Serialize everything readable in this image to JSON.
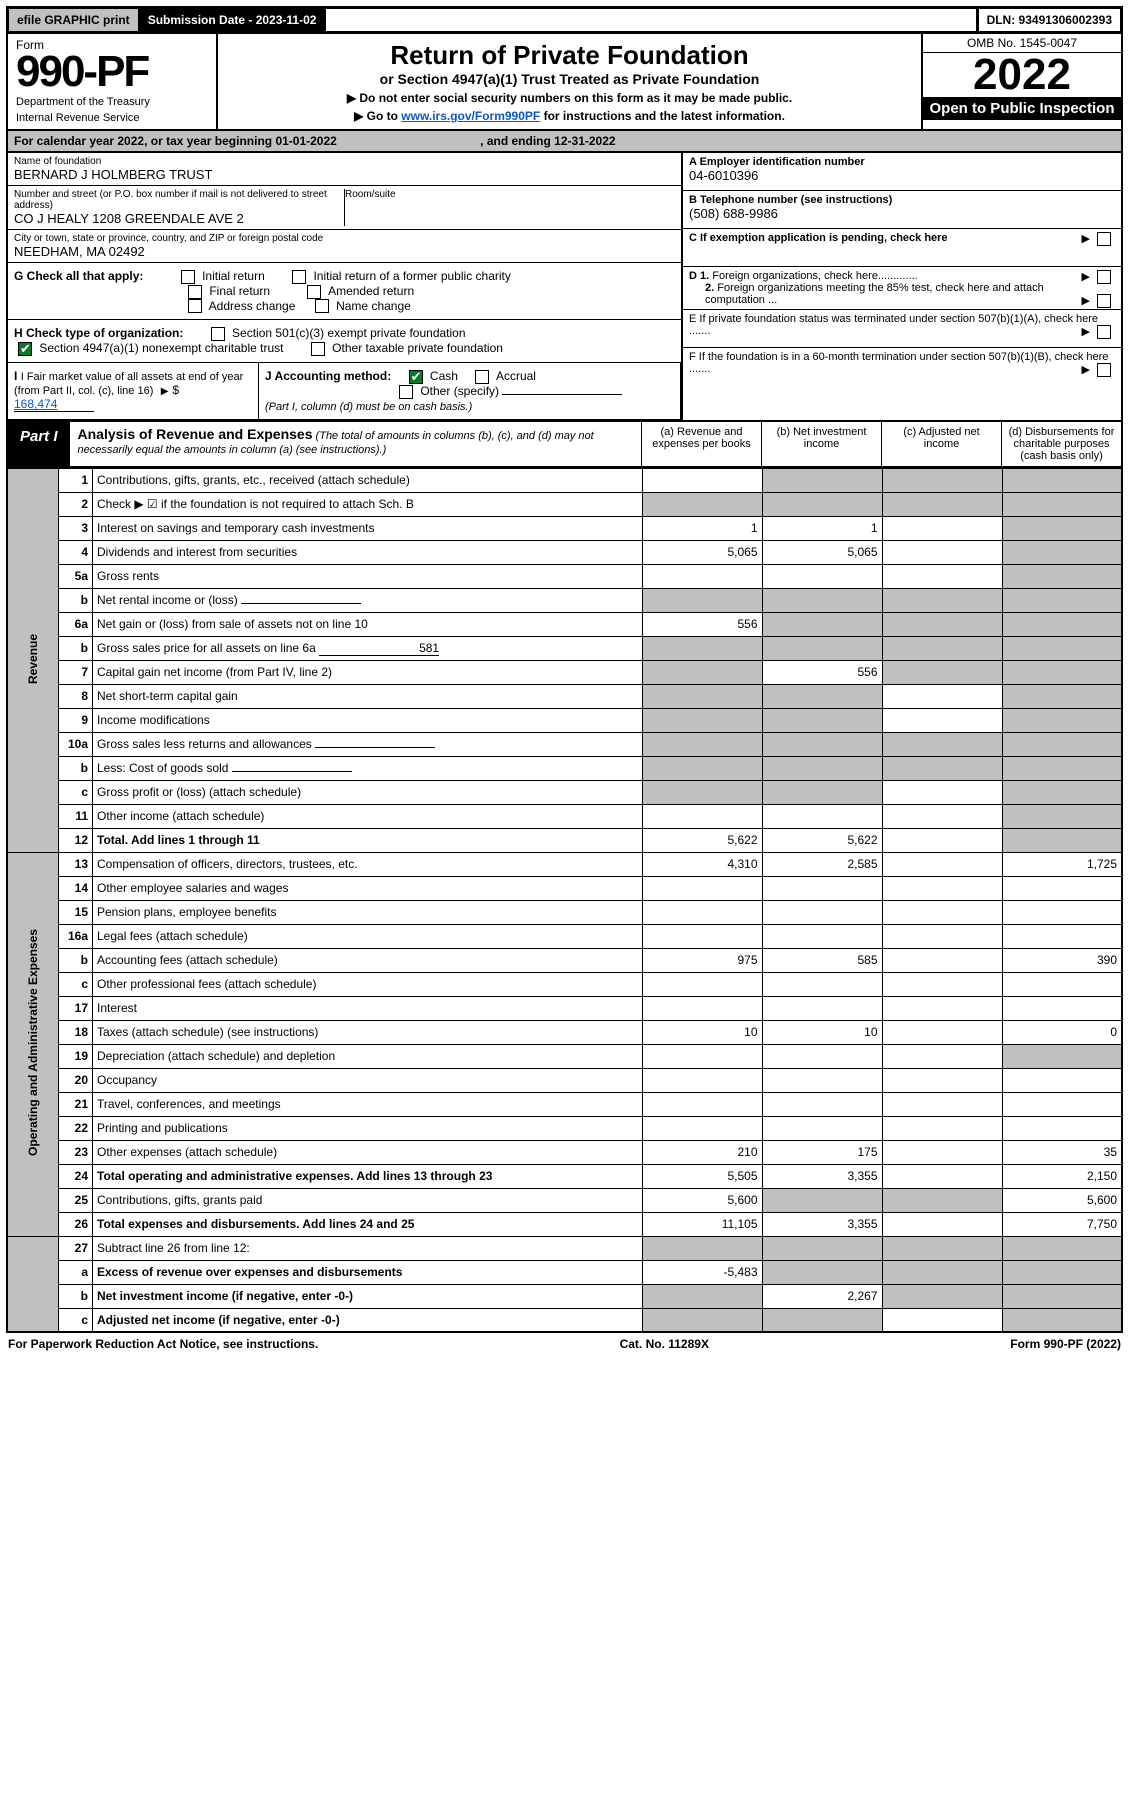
{
  "efile": {
    "print": "efile GRAPHIC print",
    "sub_label": "Submission Date - 2023-11-02",
    "dln": "DLN: 93491306002393"
  },
  "hdr": {
    "form": "Form",
    "num": "990-PF",
    "dept": "Department of the Treasury",
    "irs": "Internal Revenue Service",
    "title": "Return of Private Foundation",
    "sub": "or Section 4947(a)(1) Trust Treated as Private Foundation",
    "note1": "▶ Do not enter social security numbers on this form as it may be made public.",
    "note2_a": "▶ Go to ",
    "note2_link": "www.irs.gov/Form990PF",
    "note2_b": " for instructions and the latest information.",
    "omb": "OMB No. 1545-0047",
    "year": "2022",
    "inspect": "Open to Public Inspection"
  },
  "cal": {
    "text_a": "For calendar year 2022, or tax year beginning 01-01-2022",
    "text_b": ", and ending 12-31-2022"
  },
  "info": {
    "name_label": "Name of foundation",
    "name": "BERNARD J HOLMBERG TRUST",
    "addr_label": "Number and street (or P.O. box number if mail is not delivered to street address)",
    "addr": "CO J HEALY 1208 GREENDALE AVE 2",
    "room_label": "Room/suite",
    "city_label": "City or town, state or province, country, and ZIP or foreign postal code",
    "city": "NEEDHAM, MA  02492",
    "a_label": "A Employer identification number",
    "a_val": "04-6010396",
    "b_label": "B Telephone number (see instructions)",
    "b_val": "(508) 688-9986",
    "c_label": "C If exemption application is pending, check here",
    "d1": "D 1. Foreign organizations, check here.............",
    "d2": "2. Foreign organizations meeting the 85% test, check here and attach computation ...",
    "e": "E  If private foundation status was terminated under section 507(b)(1)(A), check here .......",
    "f": "F  If the foundation is in a 60-month termination under section 507(b)(1)(B), check here ......."
  },
  "g": {
    "label": "G Check all that apply:",
    "o1": "Initial return",
    "o2": "Initial return of a former public charity",
    "o3": "Final return",
    "o4": "Amended return",
    "o5": "Address change",
    "o6": "Name change"
  },
  "h": {
    "label": "H Check type of organization:",
    "o1": "Section 501(c)(3) exempt private foundation",
    "o2": "Section 4947(a)(1) nonexempt charitable trust",
    "o3": "Other taxable private foundation"
  },
  "i": {
    "label": "I Fair market value of all assets at end of year (from Part II, col. (c), line 16)",
    "val": "168,474"
  },
  "j": {
    "label": "J Accounting method:",
    "o1": "Cash",
    "o2": "Accrual",
    "o3": "Other (specify)",
    "note": "(Part I, column (d) must be on cash basis.)"
  },
  "part1": {
    "tag": "Part I",
    "title": "Analysis of Revenue and Expenses",
    "title_note": " (The total of amounts in columns (b), (c), and (d) may not necessarily equal the amounts in column (a) (see instructions).)",
    "cols": {
      "a": "(a)   Revenue and expenses per books",
      "b": "(b)   Net investment income",
      "c": "(c)   Adjusted net income",
      "d": "(d)   Disbursements for charitable purposes (cash basis only)"
    }
  },
  "sections": {
    "rev": "Revenue",
    "op": "Operating and Administrative Expenses"
  },
  "rows": [
    {
      "n": "1",
      "d": "Contributions, gifts, grants, etc., received (attach schedule)",
      "a": "",
      "b_sh": true,
      "c_sh": true,
      "dd_sh": true
    },
    {
      "n": "2",
      "d": "Check ▶ ☑ if the foundation is not required to attach Sch. B",
      "a_sh": true,
      "b_sh": true,
      "c_sh": true,
      "dd_sh": true,
      "bold_not": true
    },
    {
      "n": "3",
      "d": "Interest on savings and temporary cash investments",
      "a": "1",
      "b": "1",
      "dd_sh": true
    },
    {
      "n": "4",
      "d": "Dividends and interest from securities",
      "a": "5,065",
      "b": "5,065",
      "dd_sh": true
    },
    {
      "n": "5a",
      "d": "Gross rents",
      "dd_sh": true
    },
    {
      "n": "b",
      "d": "Net rental income or (loss)",
      "inline_blank": true,
      "a_sh": true,
      "b_sh": true,
      "c_sh": true,
      "dd_sh": true
    },
    {
      "n": "6a",
      "d": "Net gain or (loss) from sale of assets not on line 10",
      "a": "556",
      "b_sh": true,
      "c_sh": true,
      "dd_sh": true
    },
    {
      "n": "b",
      "d": "Gross sales price for all assets on line 6a",
      "inline_val": "581",
      "a_sh": true,
      "b_sh": true,
      "c_sh": true,
      "dd_sh": true
    },
    {
      "n": "7",
      "d": "Capital gain net income (from Part IV, line 2)",
      "a_sh": true,
      "b": "556",
      "c_sh": true,
      "dd_sh": true
    },
    {
      "n": "8",
      "d": "Net short-term capital gain",
      "a_sh": true,
      "b_sh": true,
      "dd_sh": true
    },
    {
      "n": "9",
      "d": "Income modifications",
      "a_sh": true,
      "b_sh": true,
      "dd_sh": true
    },
    {
      "n": "10a",
      "d": "Gross sales less returns and allowances",
      "inline_blank": true,
      "a_sh": true,
      "b_sh": true,
      "c_sh": true,
      "dd_sh": true
    },
    {
      "n": "b",
      "d": "Less: Cost of goods sold",
      "inline_blank": true,
      "a_sh": true,
      "b_sh": true,
      "c_sh": true,
      "dd_sh": true
    },
    {
      "n": "c",
      "d": "Gross profit or (loss) (attach schedule)",
      "a_sh": true,
      "b_sh": true,
      "dd_sh": true
    },
    {
      "n": "11",
      "d": "Other income (attach schedule)",
      "dd_sh": true
    },
    {
      "n": "12",
      "d": "Total. Add lines 1 through 11",
      "bold": true,
      "a": "5,622",
      "b": "5,622",
      "dd_sh": true
    }
  ],
  "rows_op": [
    {
      "n": "13",
      "d": "Compensation of officers, directors, trustees, etc.",
      "a": "4,310",
      "b": "2,585",
      "dd": "1,725"
    },
    {
      "n": "14",
      "d": "Other employee salaries and wages"
    },
    {
      "n": "15",
      "d": "Pension plans, employee benefits"
    },
    {
      "n": "16a",
      "d": "Legal fees (attach schedule)"
    },
    {
      "n": "b",
      "d": "Accounting fees (attach schedule)",
      "a": "975",
      "b": "585",
      "dd": "390"
    },
    {
      "n": "c",
      "d": "Other professional fees (attach schedule)"
    },
    {
      "n": "17",
      "d": "Interest"
    },
    {
      "n": "18",
      "d": "Taxes (attach schedule) (see instructions)",
      "a": "10",
      "b": "10",
      "dd": "0"
    },
    {
      "n": "19",
      "d": "Depreciation (attach schedule) and depletion",
      "dd_sh": true
    },
    {
      "n": "20",
      "d": "Occupancy"
    },
    {
      "n": "21",
      "d": "Travel, conferences, and meetings"
    },
    {
      "n": "22",
      "d": "Printing and publications"
    },
    {
      "n": "23",
      "d": "Other expenses (attach schedule)",
      "a": "210",
      "b": "175",
      "dd": "35"
    },
    {
      "n": "24",
      "d": "Total operating and administrative expenses. Add lines 13 through 23",
      "bold": true,
      "a": "5,505",
      "b": "3,355",
      "dd": "2,150"
    },
    {
      "n": "25",
      "d": "Contributions, gifts, grants paid",
      "a": "5,600",
      "b_sh": true,
      "c_sh": true,
      "dd": "5,600"
    },
    {
      "n": "26",
      "d": "Total expenses and disbursements. Add lines 24 and 25",
      "bold": true,
      "a": "11,105",
      "b": "3,355",
      "dd": "7,750"
    }
  ],
  "rows_end": [
    {
      "n": "27",
      "d": "Subtract line 26 from line 12:",
      "a_sh": true,
      "b_sh": true,
      "c_sh": true,
      "dd_sh": true
    },
    {
      "n": "a",
      "d": "Excess of revenue over expenses and disbursements",
      "bold": true,
      "a": "-5,483",
      "b_sh": true,
      "c_sh": true,
      "dd_sh": true
    },
    {
      "n": "b",
      "d": "Net investment income (if negative, enter -0-)",
      "bold": true,
      "a_sh": true,
      "b": "2,267",
      "c_sh": true,
      "dd_sh": true
    },
    {
      "n": "c",
      "d": "Adjusted net income (if negative, enter -0-)",
      "bold": true,
      "a_sh": true,
      "b_sh": true,
      "dd_sh": true
    }
  ],
  "ftr": {
    "l": "For Paperwork Reduction Act Notice, see instructions.",
    "c": "Cat. No. 11289X",
    "r": "Form 990-PF (2022)"
  }
}
